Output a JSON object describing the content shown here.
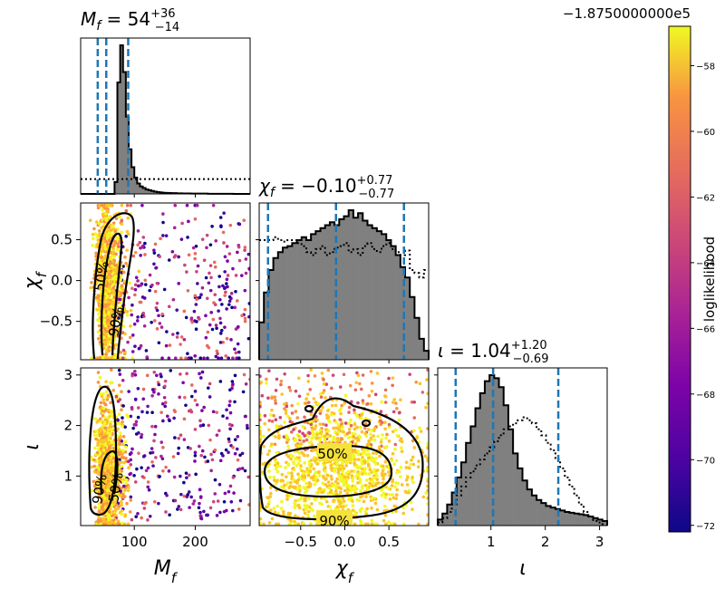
{
  "chart_data": {
    "type": "corner",
    "parameters": [
      {
        "key": "Mf",
        "label": "M_f",
        "title_name": "M_f",
        "median": "54",
        "plus": "+36",
        "minus": "−14",
        "lim": [
          12,
          290
        ],
        "ticks": [
          100,
          200
        ],
        "tick_labels": [
          "100",
          "200"
        ],
        "quantiles": [
          40,
          54,
          90
        ]
      },
      {
        "key": "chi",
        "label": "χ_f",
        "title_name": "χ_f",
        "median": "−0.10",
        "plus": "+0.77",
        "minus": "−0.77",
        "lim": [
          -0.97,
          0.95
        ],
        "ticks": [
          -0.5,
          0.0,
          0.5
        ],
        "tick_labels": [
          "−0.5",
          "0.0",
          "0.5"
        ],
        "quantiles": [
          -0.87,
          -0.1,
          0.67
        ]
      },
      {
        "key": "iota",
        "label": "ι",
        "title_name": "ι",
        "median": "1.04",
        "plus": "+1.20",
        "minus": "−0.69",
        "lim": [
          0.02,
          3.14
        ],
        "ticks": [
          1,
          2,
          3
        ],
        "tick_labels": [
          "1",
          "2",
          "3"
        ],
        "quantiles": [
          0.35,
          1.04,
          2.24
        ]
      }
    ],
    "histograms": [
      {
        "param": "Mf",
        "hist": [
          0,
          0,
          0,
          0,
          0,
          0,
          0,
          0,
          0,
          0,
          0,
          0,
          0.08,
          0.75,
          1.0,
          0.82,
          0.52,
          0.3,
          0.18,
          0.11,
          0.07,
          0.05,
          0.04,
          0.03,
          0.025,
          0.02,
          0.015,
          0.012,
          0.01,
          0.008,
          0.007,
          0.006,
          0.005,
          0.005,
          0.004,
          0.004,
          0.003,
          0.003,
          0.003,
          0.002,
          0.002,
          0.002,
          0.002,
          0.002,
          0.002,
          0.001,
          0.001,
          0.001,
          0.001,
          0.001,
          0.001,
          0.001,
          0.001,
          0.001,
          0,
          0,
          0,
          0,
          0,
          0
        ],
        "prior": [
          0.1,
          0.1,
          0.1,
          0.1,
          0.1,
          0.1,
          0.1,
          0.1,
          0.1,
          0.1,
          0.1,
          0.1,
          0.1,
          0.1,
          0.1,
          0.1,
          0.1,
          0.1,
          0.1,
          0.1,
          0.1,
          0.1,
          0.1,
          0.1,
          0.1,
          0.1,
          0.1,
          0.1,
          0.1,
          0.1,
          0.1,
          0.1,
          0.1,
          0.1,
          0.1,
          0.1,
          0.1,
          0.1,
          0.1,
          0.1,
          0.1,
          0.1,
          0.1,
          0.1,
          0.1,
          0.1,
          0.1,
          0.1,
          0.1,
          0.1,
          0.1,
          0.1,
          0.1,
          0.1,
          0.1,
          0.1,
          0.1,
          0.1,
          0.1,
          0.1
        ]
      },
      {
        "param": "chi",
        "hist": [
          0.25,
          0.45,
          0.6,
          0.68,
          0.72,
          0.75,
          0.76,
          0.78,
          0.8,
          0.82,
          0.8,
          0.84,
          0.86,
          0.88,
          0.9,
          0.92,
          0.9,
          0.94,
          0.96,
          1.0,
          0.95,
          0.98,
          0.93,
          0.9,
          0.88,
          0.86,
          0.84,
          0.8,
          0.76,
          0.7,
          0.62,
          0.55,
          0.42,
          0.28,
          0.14,
          0.06
        ],
        "prior": [
          0.8,
          0.8,
          0.8,
          0.82,
          0.8,
          0.79,
          0.8,
          0.8,
          0.78,
          0.76,
          0.72,
          0.7,
          0.74,
          0.76,
          0.7,
          0.72,
          0.75,
          0.76,
          0.78,
          0.72,
          0.74,
          0.7,
          0.76,
          0.78,
          0.74,
          0.72,
          0.76,
          0.78,
          0.74,
          0.72,
          0.7,
          0.73,
          0.6,
          0.58,
          0.55,
          0.6
        ]
      },
      {
        "param": "iota",
        "hist": [
          0.04,
          0.08,
          0.14,
          0.22,
          0.32,
          0.42,
          0.55,
          0.66,
          0.78,
          0.88,
          0.96,
          1.0,
          0.98,
          0.92,
          0.8,
          0.64,
          0.48,
          0.38,
          0.3,
          0.24,
          0.2,
          0.17,
          0.15,
          0.13,
          0.12,
          0.11,
          0.1,
          0.09,
          0.085,
          0.08,
          0.075,
          0.07,
          0.06,
          0.05,
          0.04,
          0.03
        ],
        "prior": [
          0.02,
          0.05,
          0.09,
          0.14,
          0.2,
          0.26,
          0.32,
          0.36,
          0.4,
          0.44,
          0.48,
          0.52,
          0.56,
          0.6,
          0.64,
          0.66,
          0.68,
          0.7,
          0.72,
          0.7,
          0.68,
          0.64,
          0.6,
          0.55,
          0.5,
          0.44,
          0.38,
          0.32,
          0.26,
          0.2,
          0.14,
          0.09,
          0.06,
          0.03,
          0.02,
          0.01
        ]
      }
    ],
    "contour_labels": [
      "50%",
      "90%"
    ],
    "colorbar": {
      "label": "loglikelihood",
      "offset": "−1.8750000000e5",
      "range": [
        -72.2,
        -56.8
      ],
      "ticks": [
        -72,
        -70,
        -68,
        -66,
        -64,
        -62,
        -60,
        -58
      ],
      "tick_labels": [
        "−72",
        "−70",
        "−68",
        "−66",
        "−64",
        "−62",
        "−60",
        "−58"
      ],
      "colormap": "plasma"
    },
    "colors": {
      "hist_fill": "#808080",
      "quantile_line": "#1f77b4",
      "contour": "#000000"
    }
  }
}
